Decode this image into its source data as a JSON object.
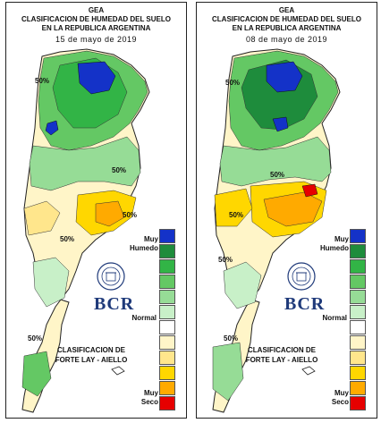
{
  "panels": [
    {
      "header_line1": "GEA",
      "header_line2": "CLASIFICACION DE HUMEDAD DEL SUELO",
      "header_line3": "EN LA REPUBLICA ARGENTINA",
      "date": "15 de mayo de 2019",
      "contour_labels": [
        "50%",
        "50%",
        "50%",
        "50%",
        "50%"
      ],
      "legend_top": "Muy",
      "legend_top2": "Humedo",
      "legend_mid": "Normal",
      "legend_bottom": "Muy",
      "legend_bottom2": "Seco",
      "credit_line1": "CLASIFICACION DE",
      "credit_line2": "FORTE LAY - AIELLO",
      "logo_text": "BCR"
    },
    {
      "header_line1": "GEA",
      "header_line2": "CLASIFICACION DE HUMEDAD DEL SUELO",
      "header_line3": "EN LA REPUBLICA ARGENTINA",
      "date": "08 de mayo de 2019",
      "contour_labels": [
        "50%",
        "50%",
        "50%",
        "50%",
        "50%"
      ],
      "legend_top": "Muy",
      "legend_top2": "Humedo",
      "legend_mid": "Normal",
      "legend_bottom": "Muy",
      "legend_bottom2": "Seco",
      "credit_line1": "CLASIFICACION DE",
      "credit_line2": "FORTE LAY - AIELLO",
      "logo_text": "BCR"
    }
  ],
  "legend_colors": [
    "#1432c8",
    "#1e8c3c",
    "#32b446",
    "#64c864",
    "#96dc96",
    "#c8f0c8",
    "#ffffff",
    "#fff5c8",
    "#ffe68c",
    "#ffd700",
    "#ffaa00",
    "#e60000"
  ]
}
